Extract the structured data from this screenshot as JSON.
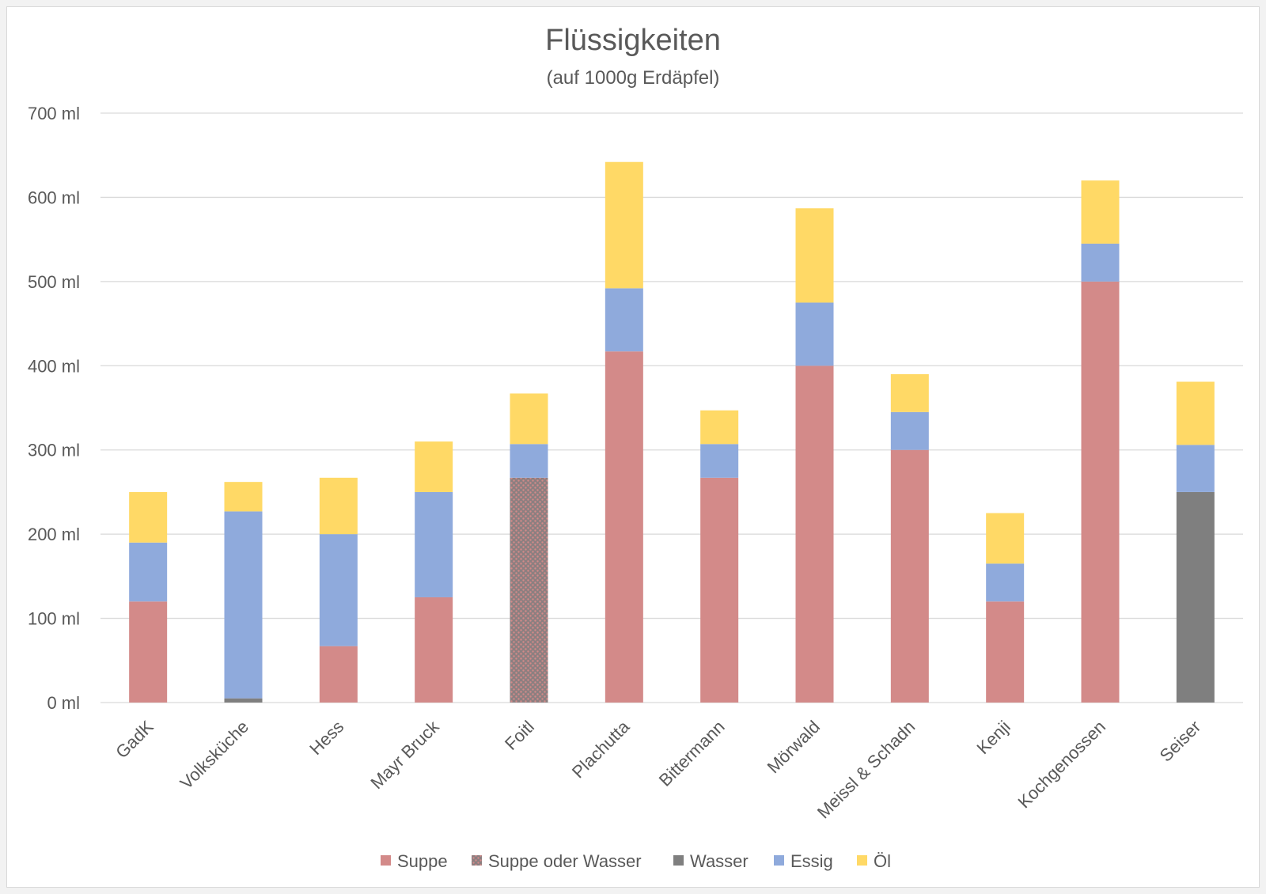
{
  "chart_data": {
    "type": "bar",
    "stacked": true,
    "title": "Flüssigkeiten",
    "subtitle": "(auf 1000g Erdäpfel)",
    "xlabel": "",
    "ylabel": "",
    "ylim": [
      0,
      700
    ],
    "yticks": [
      "0 ml",
      "100 ml",
      "200 ml",
      "300 ml",
      "400 ml",
      "500 ml",
      "600 ml",
      "700 ml"
    ],
    "grid": true,
    "legend": "bottom",
    "categories": [
      "GadK",
      "Volksküche",
      "Hess",
      "Mayr Bruck",
      "Foitl",
      "Plachutta",
      "Bittermann",
      "Mörwald",
      "Meissl & Schadn",
      "Kenji",
      "Kochgenossen",
      "Seiser"
    ],
    "series": [
      {
        "name": "Suppe",
        "color": "#D38A89",
        "values": [
          120,
          0,
          67,
          125,
          0,
          417,
          267,
          400,
          300,
          120,
          500,
          0
        ]
      },
      {
        "name": "Suppe oder Wasser",
        "color": "#9A7E7E",
        "pattern": "dotted",
        "values": [
          0,
          0,
          0,
          0,
          267,
          0,
          0,
          0,
          0,
          0,
          0,
          0
        ]
      },
      {
        "name": "Wasser",
        "color": "#7F7F7F",
        "values": [
          0,
          5,
          0,
          0,
          0,
          0,
          0,
          0,
          0,
          0,
          0,
          250
        ]
      },
      {
        "name": "Essig",
        "color": "#8FAADC",
        "values": [
          70,
          222,
          133,
          125,
          40,
          75,
          40,
          75,
          45,
          45,
          45,
          56
        ]
      },
      {
        "name": "Öl",
        "color": "#FFD966",
        "values": [
          60,
          35,
          67,
          60,
          60,
          150,
          40,
          112,
          45,
          60,
          75,
          75
        ]
      }
    ]
  }
}
